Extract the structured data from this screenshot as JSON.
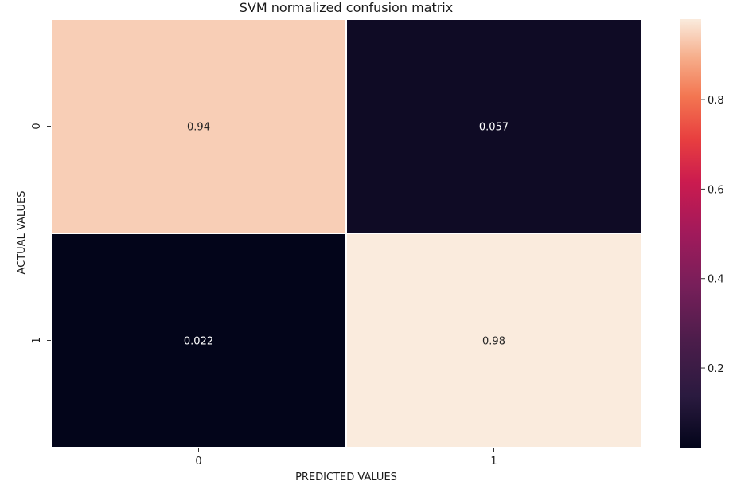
{
  "chart_data": {
    "type": "heatmap",
    "title": "SVM normalized confusion matrix",
    "xlabel": "PREDICTED VALUES",
    "ylabel": "ACTUAL VALUES",
    "x_categories": [
      "0",
      "1"
    ],
    "y_categories": [
      "0",
      "1"
    ],
    "values": [
      [
        0.94,
        0.057
      ],
      [
        0.022,
        0.98
      ]
    ],
    "cell_labels": [
      [
        "0.94",
        "0.057"
      ],
      [
        "0.022",
        "0.98"
      ]
    ],
    "colorbar": {
      "colormap": "rocket",
      "range": [
        0.022,
        0.98
      ],
      "ticks": [
        0.2,
        0.4,
        0.6,
        0.8
      ],
      "tick_labels": [
        "0.2",
        "0.4",
        "0.6",
        "0.8"
      ]
    },
    "colors": {
      "low": "#03051a",
      "high": "#faebdd",
      "cell_text_dark": "#262626",
      "cell_text_light": "#ffffff",
      "grid_line": "#ffffff"
    },
    "grid": false,
    "legend": "colorbar-right"
  }
}
